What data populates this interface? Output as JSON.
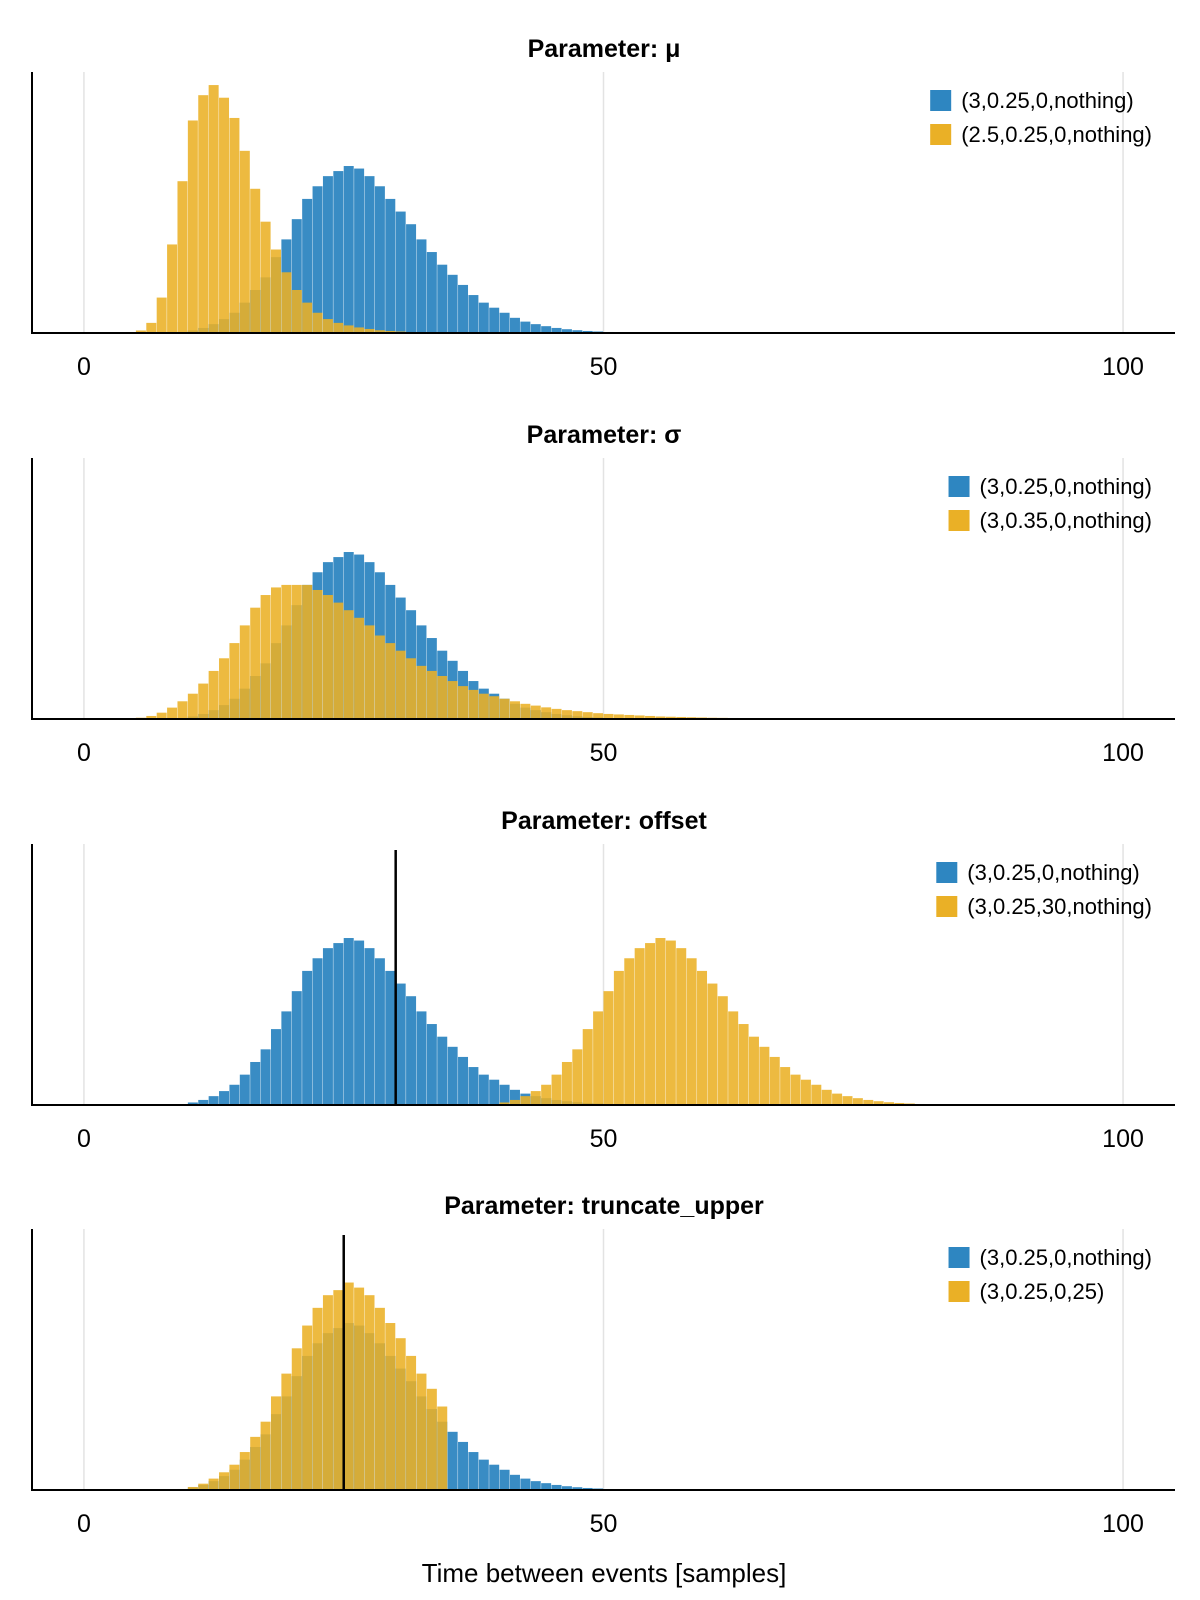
{
  "figure": {
    "xlabel": "Time between events [samples]"
  },
  "colors": {
    "blue": "#2e86c1",
    "orange": "#eab026",
    "overlap": "#b59b36",
    "marker": "#000000"
  },
  "chart_data": [
    {
      "type": "bar",
      "title": "Parameter: μ",
      "xlim": [
        -5,
        105
      ],
      "xticks": [
        "0",
        "50",
        "100"
      ],
      "xtick_values": [
        0,
        50,
        100
      ],
      "ylim": [
        0,
        1.0
      ],
      "bin_width": 1,
      "legend_position": "top-right",
      "series": [
        {
          "name": "(3,0.25,0,nothing)",
          "color": "blue",
          "start": 9,
          "values": [
            0.003,
            0.01,
            0.02,
            0.035,
            0.055,
            0.08,
            0.12,
            0.17,
            0.22,
            0.3,
            0.37,
            0.45,
            0.53,
            0.58,
            0.62,
            0.64,
            0.66,
            0.65,
            0.62,
            0.58,
            0.53,
            0.48,
            0.43,
            0.37,
            0.32,
            0.27,
            0.23,
            0.19,
            0.15,
            0.12,
            0.1,
            0.08,
            0.06,
            0.045,
            0.035,
            0.027,
            0.02,
            0.015,
            0.011,
            0.008,
            0.006,
            0.004,
            0.003,
            0.002,
            0.0015,
            0.001
          ]
        },
        {
          "name": "(2.5,0.25,0,nothing)",
          "color": "orange",
          "start": 4,
          "values": [
            0.004,
            0.01,
            0.04,
            0.14,
            0.35,
            0.6,
            0.84,
            0.94,
            0.98,
            0.93,
            0.85,
            0.72,
            0.57,
            0.44,
            0.33,
            0.24,
            0.17,
            0.12,
            0.08,
            0.055,
            0.04,
            0.03,
            0.022,
            0.016,
            0.011,
            0.008,
            0.006,
            0.004,
            0.003,
            0.002
          ]
        }
      ],
      "vline": null
    },
    {
      "type": "bar",
      "title": "Parameter: σ",
      "xlim": [
        -5,
        105
      ],
      "xticks": [
        "0",
        "50",
        "100"
      ],
      "xtick_values": [
        0,
        50,
        100
      ],
      "ylim": [
        0,
        1.0
      ],
      "bin_width": 1,
      "legend_position": "top-right",
      "series": [
        {
          "name": "(3,0.25,0,nothing)",
          "color": "blue",
          "start": 9,
          "values": [
            0.003,
            0.01,
            0.02,
            0.035,
            0.055,
            0.08,
            0.12,
            0.17,
            0.22,
            0.3,
            0.37,
            0.45,
            0.53,
            0.58,
            0.62,
            0.64,
            0.66,
            0.65,
            0.62,
            0.58,
            0.53,
            0.48,
            0.43,
            0.37,
            0.32,
            0.27,
            0.23,
            0.19,
            0.15,
            0.12,
            0.1,
            0.08,
            0.06,
            0.045,
            0.035,
            0.027,
            0.02,
            0.015,
            0.011,
            0.008,
            0.006,
            0.004,
            0.003,
            0.002,
            0.0015,
            0.001
          ]
        },
        {
          "name": "(3,0.35,0,nothing)",
          "color": "orange",
          "start": 5,
          "values": [
            0.005,
            0.012,
            0.025,
            0.045,
            0.07,
            0.1,
            0.14,
            0.19,
            0.24,
            0.3,
            0.37,
            0.44,
            0.49,
            0.52,
            0.53,
            0.53,
            0.53,
            0.51,
            0.49,
            0.46,
            0.43,
            0.4,
            0.37,
            0.33,
            0.3,
            0.27,
            0.24,
            0.21,
            0.19,
            0.17,
            0.15,
            0.13,
            0.115,
            0.1,
            0.09,
            0.08,
            0.07,
            0.06,
            0.053,
            0.046,
            0.04,
            0.035,
            0.031,
            0.027,
            0.023,
            0.02,
            0.018,
            0.016,
            0.014,
            0.012,
            0.01,
            0.009,
            0.008,
            0.007,
            0.006,
            0.005,
            0.0045,
            0.004,
            0.0035,
            0.003,
            0.0027,
            0.0024,
            0.0021,
            0.0019,
            0.0017,
            0.0015,
            0.0013,
            0.0012,
            0.001,
            0.0009,
            0.0008,
            0.0007,
            0.0006,
            0.0005,
            0.0004,
            0.0003
          ]
        }
      ],
      "vline": null
    },
    {
      "type": "bar",
      "title": "Parameter: offset",
      "xlim": [
        -5,
        105
      ],
      "xticks": [
        "0",
        "50",
        "100"
      ],
      "xtick_values": [
        0,
        50,
        100
      ],
      "ylim": [
        0,
        1.0
      ],
      "bin_width": 1,
      "legend_position": "top-right",
      "series": [
        {
          "name": "(3,0.25,0,nothing)",
          "color": "blue",
          "start": 9,
          "values": [
            0.003,
            0.01,
            0.02,
            0.035,
            0.055,
            0.08,
            0.12,
            0.17,
            0.22,
            0.3,
            0.37,
            0.45,
            0.53,
            0.58,
            0.62,
            0.64,
            0.66,
            0.65,
            0.62,
            0.58,
            0.53,
            0.48,
            0.43,
            0.37,
            0.32,
            0.27,
            0.23,
            0.19,
            0.15,
            0.12,
            0.1,
            0.08,
            0.06,
            0.045,
            0.035,
            0.027,
            0.02,
            0.015,
            0.011,
            0.008,
            0.006,
            0.004,
            0.003,
            0.002,
            0.0015,
            0.001
          ]
        },
        {
          "name": "(3,0.25,30,nothing)",
          "color": "orange",
          "start": 39,
          "values": [
            0.003,
            0.01,
            0.02,
            0.035,
            0.055,
            0.08,
            0.12,
            0.17,
            0.22,
            0.3,
            0.37,
            0.45,
            0.53,
            0.58,
            0.62,
            0.64,
            0.66,
            0.65,
            0.62,
            0.58,
            0.53,
            0.48,
            0.43,
            0.37,
            0.32,
            0.27,
            0.23,
            0.19,
            0.15,
            0.12,
            0.1,
            0.08,
            0.06,
            0.045,
            0.035,
            0.027,
            0.02,
            0.015,
            0.011,
            0.008,
            0.006,
            0.004,
            0.003,
            0.002,
            0.0015,
            0.001
          ]
        }
      ],
      "vline": 30
    },
    {
      "type": "bar",
      "title": "Parameter: truncate_upper",
      "xlim": [
        -5,
        105
      ],
      "xticks": [
        "0",
        "50",
        "100"
      ],
      "xtick_values": [
        0,
        50,
        100
      ],
      "ylim": [
        0,
        1.0
      ],
      "bin_width": 1,
      "legend_position": "top-right",
      "series": [
        {
          "name": "(3,0.25,0,nothing)",
          "color": "blue",
          "start": 9,
          "values": [
            0.003,
            0.01,
            0.02,
            0.035,
            0.055,
            0.08,
            0.12,
            0.17,
            0.22,
            0.3,
            0.37,
            0.45,
            0.53,
            0.58,
            0.62,
            0.64,
            0.66,
            0.65,
            0.62,
            0.58,
            0.53,
            0.48,
            0.43,
            0.37,
            0.32,
            0.27,
            0.23,
            0.19,
            0.15,
            0.12,
            0.1,
            0.08,
            0.06,
            0.045,
            0.035,
            0.027,
            0.02,
            0.015,
            0.011,
            0.008,
            0.006,
            0.004,
            0.003,
            0.002,
            0.0015,
            0.001
          ]
        },
        {
          "name": "(3,0.25,0,25)",
          "color": "orange",
          "start": 9,
          "values": [
            0.004,
            0.012,
            0.025,
            0.045,
            0.07,
            0.1,
            0.15,
            0.21,
            0.27,
            0.37,
            0.46,
            0.56,
            0.65,
            0.72,
            0.77,
            0.79,
            0.82,
            0.8,
            0.77,
            0.72,
            0.66,
            0.6,
            0.53,
            0.46,
            0.4,
            0.33
          ]
        }
      ],
      "vline": 25
    }
  ]
}
